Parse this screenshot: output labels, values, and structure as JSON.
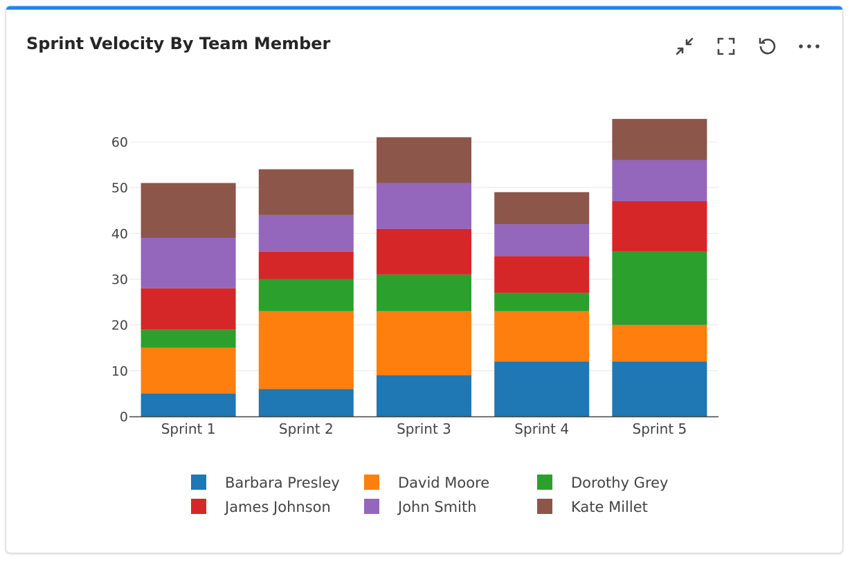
{
  "header": {
    "title": "Sprint Velocity By Team Member",
    "tools": [
      {
        "icon": "collapse-icon"
      },
      {
        "icon": "fullscreen-icon"
      },
      {
        "icon": "reset-icon"
      },
      {
        "icon": "more-icon"
      }
    ]
  },
  "colors": {
    "accent": "#2684f0"
  },
  "chart_data": {
    "type": "bar",
    "stacked": true,
    "title": "",
    "categories": [
      "Sprint 1",
      "Sprint 2",
      "Sprint 3",
      "Sprint 4",
      "Sprint 5"
    ],
    "ylim": [
      0,
      68
    ],
    "yticks": [
      0,
      10,
      20,
      30,
      40,
      50,
      60
    ],
    "grid": true,
    "legend": "bottom",
    "series": [
      {
        "name": "Barbara Presley",
        "color": "#1f77b4",
        "values": [
          5,
          6,
          9,
          12,
          12
        ]
      },
      {
        "name": "David Moore",
        "color": "#ff7f0e",
        "values": [
          10,
          17,
          14,
          11,
          8
        ]
      },
      {
        "name": "Dorothy Grey",
        "color": "#2ca02c",
        "values": [
          4,
          7,
          8,
          4,
          16
        ]
      },
      {
        "name": "James Johnson",
        "color": "#d62728",
        "values": [
          9,
          6,
          10,
          8,
          11
        ]
      },
      {
        "name": "John Smith",
        "color": "#9467bd",
        "values": [
          11,
          8,
          10,
          7,
          9
        ]
      },
      {
        "name": "Kate Millet",
        "color": "#8c564b",
        "values": [
          12,
          10,
          10,
          7,
          9
        ]
      }
    ]
  }
}
